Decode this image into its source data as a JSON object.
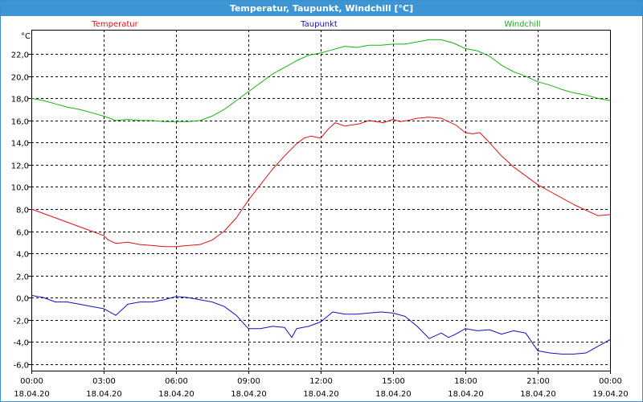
{
  "window": {
    "title": "Temperatur, Taupunkt, Windchill [°C]"
  },
  "colors": {
    "title_bar": "#3d95d4",
    "temperatur": "#e31010",
    "taupunkt": "#1010c8",
    "windchill": "#10b410",
    "grid": "#000000"
  },
  "chart_data": {
    "type": "line",
    "title": "Temperatur, Taupunkt, Windchill [°C]",
    "ylabel": "°C",
    "xlabel": "",
    "ylim": [
      -6.6,
      24.2
    ],
    "xlim": [
      0,
      24
    ],
    "grid": true,
    "y_ticks": [
      -6,
      -4,
      -2,
      0,
      2,
      4,
      6,
      8,
      10,
      12,
      14,
      16,
      18,
      20,
      22
    ],
    "y_tick_labels": [
      "-6,0",
      "-4,0",
      "-2,0",
      "0,0",
      "2,0",
      "4,0",
      "6,0",
      "8,0",
      "10,0",
      "12,0",
      "14,0",
      "16,0",
      "18,0",
      "20,0",
      "22,0"
    ],
    "x_ticks": [
      0,
      3,
      6,
      9,
      12,
      15,
      18,
      21,
      24
    ],
    "x_tick_labels": [
      {
        "time": "00:00",
        "date": "18.04.20"
      },
      {
        "time": "03:00",
        "date": "18.04.20"
      },
      {
        "time": "06:00",
        "date": "18.04.20"
      },
      {
        "time": "09:00",
        "date": "18.04.20"
      },
      {
        "time": "12:00",
        "date": "18.04.20"
      },
      {
        "time": "15:00",
        "date": "18.04.20"
      },
      {
        "time": "18:00",
        "date": "18.04.20"
      },
      {
        "time": "21:00",
        "date": "18.04.20"
      },
      {
        "time": "00:00",
        "date": "19.04.20"
      }
    ],
    "legend_placement": "top",
    "series": [
      {
        "name": "Temperatur",
        "color": "#e31010",
        "x": [
          0,
          0.5,
          1,
          1.5,
          2,
          2.5,
          3,
          3.2,
          3.5,
          4,
          4.5,
          5,
          5.5,
          6,
          6.5,
          7,
          7.5,
          8,
          8.5,
          9,
          9.5,
          10,
          10.5,
          11,
          11.3,
          11.6,
          12,
          12.3,
          12.6,
          13,
          13.3,
          13.6,
          14,
          14.3,
          14.6,
          15,
          15.3,
          15.6,
          16,
          16.5,
          17,
          17.3,
          17.6,
          18,
          18.3,
          18.6,
          19,
          19.5,
          20,
          20.5,
          21,
          21.5,
          22,
          22.5,
          23,
          23.5,
          24
        ],
        "y": [
          8.0,
          7.6,
          7.2,
          6.8,
          6.4,
          6.0,
          5.6,
          5.2,
          4.9,
          5.0,
          4.8,
          4.7,
          4.6,
          4.6,
          4.7,
          4.8,
          5.2,
          6.0,
          7.2,
          8.8,
          10.2,
          11.6,
          12.8,
          13.9,
          14.4,
          14.6,
          14.4,
          15.2,
          15.8,
          15.5,
          15.6,
          15.7,
          16.0,
          15.9,
          15.8,
          16.1,
          15.9,
          16.0,
          16.2,
          16.3,
          16.2,
          15.9,
          15.6,
          14.9,
          14.8,
          14.9,
          14.0,
          12.8,
          11.8,
          11.0,
          10.2,
          9.6,
          9.0,
          8.4,
          7.9,
          7.4,
          7.5
        ]
      },
      {
        "name": "Taupunkt",
        "color": "#1010c8",
        "x": [
          0,
          0.5,
          1,
          1.5,
          2,
          2.5,
          3,
          3.5,
          4,
          4.5,
          5,
          5.5,
          6,
          6.5,
          7,
          7.5,
          8,
          8.5,
          9,
          9.5,
          10,
          10.5,
          10.8,
          11,
          11.5,
          12,
          12.5,
          13,
          13.5,
          14,
          14.5,
          15,
          15.5,
          16,
          16.5,
          17,
          17.3,
          17.6,
          18,
          18.5,
          19,
          19.5,
          20,
          20.5,
          21,
          21.5,
          22,
          22.5,
          23,
          23.5,
          24
        ],
        "y": [
          0.2,
          0.0,
          -0.4,
          -0.4,
          -0.6,
          -0.8,
          -1.0,
          -1.6,
          -0.6,
          -0.4,
          -0.4,
          -0.2,
          0.1,
          0.0,
          -0.2,
          -0.4,
          -0.8,
          -1.6,
          -2.8,
          -2.8,
          -2.6,
          -2.7,
          -3.6,
          -2.8,
          -2.6,
          -2.2,
          -1.3,
          -1.5,
          -1.5,
          -1.4,
          -1.3,
          -1.4,
          -1.7,
          -2.6,
          -3.7,
          -3.2,
          -3.6,
          -3.3,
          -2.8,
          -3.0,
          -2.9,
          -3.3,
          -3.0,
          -3.2,
          -4.8,
          -5.0,
          -5.1,
          -5.1,
          -5.0,
          -4.4,
          -3.8
        ]
      },
      {
        "name": "Windchill",
        "color": "#10b410",
        "x": [
          0,
          0.5,
          1,
          1.5,
          2,
          2.5,
          3,
          3.5,
          4,
          4.5,
          5,
          5.5,
          6,
          6.5,
          7,
          7.5,
          8,
          8.5,
          9,
          9.5,
          10,
          10.5,
          11,
          11.5,
          12,
          12.5,
          13,
          13.5,
          14,
          14.5,
          15,
          15.5,
          16,
          16.5,
          17,
          17.5,
          18,
          18.5,
          19,
          19.5,
          20,
          20.5,
          21,
          21.5,
          22,
          22.5,
          23,
          23.5,
          24
        ],
        "y": [
          18.0,
          17.8,
          17.5,
          17.2,
          17.0,
          16.7,
          16.4,
          16.0,
          16.1,
          16.0,
          16.0,
          15.9,
          15.9,
          15.9,
          16.0,
          16.4,
          17.0,
          17.8,
          18.6,
          19.4,
          20.2,
          20.8,
          21.4,
          21.9,
          22.1,
          22.4,
          22.7,
          22.6,
          22.8,
          22.8,
          22.9,
          22.9,
          23.1,
          23.3,
          23.3,
          23.0,
          22.5,
          22.3,
          21.8,
          21.0,
          20.4,
          20.0,
          19.5,
          19.2,
          18.8,
          18.5,
          18.3,
          18.0,
          17.8
        ]
      }
    ]
  }
}
